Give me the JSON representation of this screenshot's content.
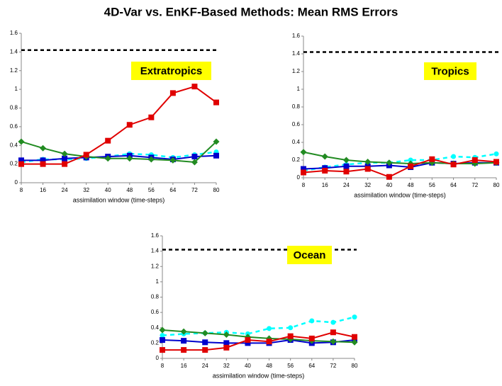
{
  "title": "4D-Var vs. EnKF-Based Methods: Mean RMS Errors",
  "chart_data": [
    {
      "type": "line",
      "label": "Extratropics",
      "x_label": "assimilation window (time-steps)",
      "x": [
        8,
        16,
        24,
        32,
        40,
        48,
        56,
        64,
        72,
        80
      ],
      "xlim": [
        8,
        80
      ],
      "xticks": [
        8,
        16,
        24,
        32,
        40,
        48,
        56,
        64,
        72,
        80
      ],
      "ylim": [
        0,
        1.6
      ],
      "yticks": [
        0,
        0.2,
        0.4,
        0.6,
        0.8,
        1,
        1.2,
        1.4,
        1.6
      ],
      "reference_line": 1.42,
      "series": [
        {
          "color": "#00ffff",
          "marker": "circle",
          "dashed": true,
          "values": [
            0.22,
            0.25,
            0.25,
            0.26,
            0.28,
            0.31,
            0.3,
            0.27,
            0.3,
            0.33
          ]
        },
        {
          "color": "#0000cc",
          "marker": "square",
          "dashed": false,
          "values": [
            0.24,
            0.24,
            0.26,
            0.27,
            0.28,
            0.29,
            0.27,
            0.25,
            0.28,
            0.29
          ]
        },
        {
          "color": "#228b22",
          "marker": "diamond",
          "dashed": false,
          "values": [
            0.44,
            0.37,
            0.31,
            0.28,
            0.26,
            0.26,
            0.25,
            0.24,
            0.22,
            0.44
          ]
        },
        {
          "color": "#e00000",
          "marker": "square",
          "dashed": false,
          "values": [
            0.2,
            0.2,
            0.2,
            0.3,
            0.45,
            0.62,
            0.7,
            0.96,
            1.03,
            0.86
          ]
        }
      ]
    },
    {
      "type": "line",
      "label": "Tropics",
      "x_label": "assimilation window (time-steps)",
      "x": [
        8,
        16,
        24,
        32,
        40,
        48,
        56,
        64,
        72,
        80
      ],
      "xlim": [
        8,
        80
      ],
      "xticks": [
        8,
        16,
        24,
        32,
        40,
        48,
        56,
        64,
        72,
        80
      ],
      "ylim": [
        0,
        1.6
      ],
      "yticks": [
        0,
        0.2,
        0.4,
        0.6,
        0.8,
        1,
        1.2,
        1.4,
        1.6
      ],
      "reference_line": 1.42,
      "series": [
        {
          "color": "#00ffff",
          "marker": "circle",
          "dashed": true,
          "values": [
            0.08,
            0.12,
            0.15,
            0.17,
            0.17,
            0.2,
            0.2,
            0.24,
            0.23,
            0.27
          ]
        },
        {
          "color": "#0000cc",
          "marker": "square",
          "dashed": false,
          "values": [
            0.1,
            0.11,
            0.13,
            0.13,
            0.14,
            0.12,
            0.17,
            0.16,
            0.17,
            0.17
          ]
        },
        {
          "color": "#228b22",
          "marker": "diamond",
          "dashed": false,
          "values": [
            0.29,
            0.24,
            0.2,
            0.18,
            0.17,
            0.16,
            0.17,
            0.16,
            0.16,
            0.17
          ]
        },
        {
          "color": "#e00000",
          "marker": "square",
          "dashed": false,
          "values": [
            0.06,
            0.08,
            0.07,
            0.1,
            0.01,
            0.13,
            0.21,
            0.15,
            0.2,
            0.18
          ]
        }
      ]
    },
    {
      "type": "line",
      "label": "Ocean",
      "x_label": "assimilation window (time-steps)",
      "x": [
        8,
        16,
        24,
        32,
        40,
        48,
        56,
        64,
        72,
        80
      ],
      "xlim": [
        8,
        80
      ],
      "xticks": [
        8,
        16,
        24,
        32,
        40,
        48,
        56,
        64,
        72,
        80
      ],
      "ylim": [
        0,
        1.6
      ],
      "yticks": [
        0,
        0.2,
        0.4,
        0.6,
        0.8,
        1,
        1.2,
        1.4,
        1.6
      ],
      "reference_line": 1.42,
      "series": [
        {
          "color": "#00ffff",
          "marker": "circle",
          "dashed": true,
          "values": [
            0.3,
            0.32,
            0.33,
            0.34,
            0.32,
            0.39,
            0.4,
            0.49,
            0.47,
            0.54
          ]
        },
        {
          "color": "#0000cc",
          "marker": "square",
          "dashed": false,
          "values": [
            0.24,
            0.23,
            0.21,
            0.2,
            0.2,
            0.2,
            0.24,
            0.2,
            0.21,
            0.24
          ]
        },
        {
          "color": "#228b22",
          "marker": "diamond",
          "dashed": false,
          "values": [
            0.37,
            0.35,
            0.33,
            0.31,
            0.28,
            0.26,
            0.25,
            0.23,
            0.22,
            0.21
          ]
        },
        {
          "color": "#e00000",
          "marker": "square",
          "dashed": false,
          "values": [
            0.11,
            0.11,
            0.11,
            0.14,
            0.24,
            0.22,
            0.29,
            0.26,
            0.34,
            0.28
          ]
        }
      ]
    }
  ]
}
